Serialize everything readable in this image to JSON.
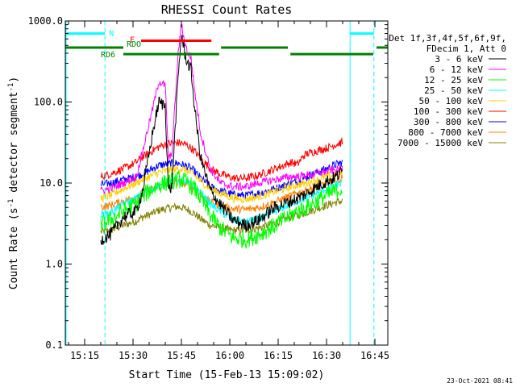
{
  "chart_data": {
    "type": "line",
    "title": "RHESSI Count Rates",
    "xlabel": "Start Time (15-Feb-13 15:09:02)",
    "ylabel_parts": [
      "Count Rate (s",
      "-1",
      " detector segment",
      "-1",
      ")"
    ],
    "xlim_minutes": [
      0,
      100
    ],
    "ylim": [
      0.1,
      1000
    ],
    "yscale": "log",
    "x_ticks": [
      {
        "label": "15:15",
        "minute": 6
      },
      {
        "label": "15:30",
        "minute": 21
      },
      {
        "label": "15:45",
        "minute": 36
      },
      {
        "label": "16:00",
        "minute": 51
      },
      {
        "label": "16:15",
        "minute": 66
      },
      {
        "label": "16:30",
        "minute": 81
      },
      {
        "label": "16:45",
        "minute": 96
      }
    ],
    "y_ticks": [
      {
        "label": "0.1",
        "value": 0.1
      },
      {
        "label": "1.0",
        "value": 1
      },
      {
        "label": "10.0",
        "value": 10
      },
      {
        "label": "100.0",
        "value": 100
      },
      {
        "label": "1000.0",
        "value": 1000
      }
    ],
    "legend": {
      "placement": "right",
      "header": [
        "Det 1f,3f,4f,5f,6f,9f,",
        "FDecim 1, Att 0"
      ]
    },
    "series": [
      {
        "name": "3 - 6 keV",
        "color": "#000000",
        "points": [
          [
            11,
            2.0
          ],
          [
            14,
            2.3
          ],
          [
            18,
            3.8
          ],
          [
            22,
            4.5
          ],
          [
            24,
            8
          ],
          [
            27,
            40
          ],
          [
            29,
            100
          ],
          [
            31,
            90
          ],
          [
            32,
            8
          ],
          [
            33,
            9
          ],
          [
            35,
            200
          ],
          [
            36,
            700
          ],
          [
            37,
            400
          ],
          [
            38,
            300
          ],
          [
            39,
            250
          ],
          [
            40,
            90
          ],
          [
            42,
            20
          ],
          [
            45,
            8
          ],
          [
            48,
            5.5
          ],
          [
            52,
            3.5
          ],
          [
            56,
            3.0
          ],
          [
            60,
            3.5
          ],
          [
            65,
            5.0
          ],
          [
            70,
            6.0
          ],
          [
            72,
            6.5
          ],
          [
            75,
            7.5
          ],
          [
            78,
            9.0
          ],
          [
            81,
            10.5
          ],
          [
            84,
            12.0
          ],
          [
            86,
            14.0
          ]
        ]
      },
      {
        "name": "6 - 12 keV",
        "color": "#ff00ff",
        "points": [
          [
            11,
            8.0
          ],
          [
            14,
            8.5
          ],
          [
            18,
            10
          ],
          [
            22,
            12
          ],
          [
            24,
            25
          ],
          [
            27,
            80
          ],
          [
            29,
            180
          ],
          [
            31,
            160
          ],
          [
            32,
            20
          ],
          [
            33,
            22
          ],
          [
            35,
            400
          ],
          [
            36,
            900
          ],
          [
            37,
            550
          ],
          [
            38,
            400
          ],
          [
            39,
            350
          ],
          [
            40,
            150
          ],
          [
            42,
            40
          ],
          [
            45,
            15
          ],
          [
            48,
            10
          ],
          [
            52,
            9
          ],
          [
            56,
            9
          ],
          [
            60,
            10
          ],
          [
            65,
            11
          ],
          [
            70,
            12
          ],
          [
            72,
            12
          ],
          [
            75,
            12.5
          ],
          [
            78,
            13
          ],
          [
            81,
            14
          ],
          [
            84,
            14.5
          ],
          [
            86,
            15
          ]
        ]
      },
      {
        "name": "12 - 25 keV",
        "color": "#00ff00",
        "points": [
          [
            11,
            3.0
          ],
          [
            14,
            3.5
          ],
          [
            18,
            4.5
          ],
          [
            22,
            5.5
          ],
          [
            24,
            7.0
          ],
          [
            27,
            8.5
          ],
          [
            29,
            9.5
          ],
          [
            31,
            10
          ],
          [
            33,
            10.5
          ],
          [
            35,
            11
          ],
          [
            36,
            11
          ],
          [
            38,
            10
          ],
          [
            40,
            8.5
          ],
          [
            42,
            6.5
          ],
          [
            45,
            4.0
          ],
          [
            48,
            2.8
          ],
          [
            52,
            2.1
          ],
          [
            56,
            2.0
          ],
          [
            60,
            2.3
          ],
          [
            65,
            3.0
          ],
          [
            70,
            4.0
          ],
          [
            72,
            4.5
          ],
          [
            75,
            5.0
          ],
          [
            78,
            6.0
          ],
          [
            81,
            7.0
          ],
          [
            84,
            8.0
          ],
          [
            86,
            8.5
          ]
        ]
      },
      {
        "name": "25 - 50 keV",
        "color": "#00ffff",
        "points": [
          [
            11,
            4.0
          ],
          [
            14,
            4.3
          ],
          [
            18,
            5.5
          ],
          [
            22,
            6.5
          ],
          [
            24,
            7.5
          ],
          [
            27,
            8.5
          ],
          [
            29,
            9.5
          ],
          [
            31,
            10
          ],
          [
            33,
            10.5
          ],
          [
            35,
            11
          ],
          [
            36,
            11
          ],
          [
            38,
            10
          ],
          [
            40,
            9
          ],
          [
            42,
            7.5
          ],
          [
            45,
            5.5
          ],
          [
            48,
            4.5
          ],
          [
            52,
            3.5
          ],
          [
            56,
            3.3
          ],
          [
            60,
            3.6
          ],
          [
            65,
            4.5
          ],
          [
            70,
            5.5
          ],
          [
            72,
            6.0
          ],
          [
            75,
            6.5
          ],
          [
            78,
            7.5
          ],
          [
            81,
            8.5
          ],
          [
            84,
            9.5
          ],
          [
            86,
            10
          ]
        ]
      },
      {
        "name": "50 - 100 keV",
        "color": "#ffd000",
        "points": [
          [
            11,
            6.5
          ],
          [
            14,
            7.0
          ],
          [
            18,
            8.5
          ],
          [
            22,
            10
          ],
          [
            24,
            11
          ],
          [
            27,
            12.5
          ],
          [
            29,
            13.5
          ],
          [
            31,
            14
          ],
          [
            33,
            14.5
          ],
          [
            35,
            15
          ],
          [
            36,
            15
          ],
          [
            38,
            14
          ],
          [
            40,
            12.5
          ],
          [
            42,
            10.5
          ],
          [
            45,
            8.5
          ],
          [
            48,
            7.5
          ],
          [
            52,
            6.5
          ],
          [
            56,
            6.3
          ],
          [
            60,
            6.8
          ],
          [
            65,
            7.8
          ],
          [
            70,
            9.0
          ],
          [
            72,
            9.5
          ],
          [
            75,
            10
          ],
          [
            78,
            11
          ],
          [
            81,
            12
          ],
          [
            84,
            13
          ],
          [
            86,
            13.5
          ]
        ]
      },
      {
        "name": "100 - 300 keV",
        "color": "#ff0000",
        "points": [
          [
            11,
            12
          ],
          [
            14,
            13
          ],
          [
            18,
            15
          ],
          [
            22,
            18
          ],
          [
            24,
            21
          ],
          [
            27,
            25
          ],
          [
            29,
            28
          ],
          [
            31,
            30
          ],
          [
            33,
            31
          ],
          [
            35,
            31.5
          ],
          [
            36,
            31
          ],
          [
            38,
            29
          ],
          [
            40,
            25
          ],
          [
            42,
            20
          ],
          [
            45,
            15
          ],
          [
            48,
            13
          ],
          [
            52,
            11.5
          ],
          [
            56,
            11.5
          ],
          [
            60,
            12.5
          ],
          [
            65,
            15
          ],
          [
            70,
            18
          ],
          [
            72,
            17
          ],
          [
            74,
            22
          ],
          [
            75,
            23
          ],
          [
            78,
            25
          ],
          [
            81,
            27
          ],
          [
            84,
            30
          ],
          [
            86,
            32
          ]
        ]
      },
      {
        "name": "300 - 800 keV",
        "color": "#0000ff",
        "points": [
          [
            11,
            9.5
          ],
          [
            14,
            10
          ],
          [
            18,
            11
          ],
          [
            22,
            12
          ],
          [
            24,
            13
          ],
          [
            27,
            15
          ],
          [
            29,
            16.5
          ],
          [
            31,
            17
          ],
          [
            33,
            17.5
          ],
          [
            35,
            17.5
          ],
          [
            36,
            17
          ],
          [
            38,
            16
          ],
          [
            40,
            14
          ],
          [
            42,
            11.5
          ],
          [
            45,
            9
          ],
          [
            48,
            8
          ],
          [
            52,
            7.2
          ],
          [
            56,
            7
          ],
          [
            60,
            7.5
          ],
          [
            65,
            8.5
          ],
          [
            70,
            10
          ],
          [
            72,
            10.5
          ],
          [
            75,
            12
          ],
          [
            78,
            13.5
          ],
          [
            81,
            15
          ],
          [
            84,
            17
          ],
          [
            86,
            18
          ]
        ]
      },
      {
        "name": "800 - 7000 keV",
        "color": "#ff8000",
        "points": [
          [
            11,
            5.0
          ],
          [
            14,
            5.3
          ],
          [
            18,
            6.0
          ],
          [
            22,
            6.8
          ],
          [
            24,
            7.5
          ],
          [
            27,
            8.5
          ],
          [
            29,
            9.3
          ],
          [
            31,
            9.8
          ],
          [
            33,
            10
          ],
          [
            35,
            10.2
          ],
          [
            36,
            10
          ],
          [
            38,
            9.5
          ],
          [
            40,
            8.5
          ],
          [
            42,
            7.0
          ],
          [
            45,
            5.8
          ],
          [
            48,
            5.2
          ],
          [
            52,
            4.8
          ],
          [
            56,
            4.7
          ],
          [
            60,
            5.0
          ],
          [
            65,
            5.8
          ],
          [
            70,
            7.0
          ],
          [
            72,
            7.5
          ],
          [
            75,
            8.2
          ],
          [
            78,
            9.0
          ],
          [
            81,
            10
          ],
          [
            84,
            11
          ],
          [
            86,
            11.5
          ]
        ]
      },
      {
        "name": "7000 - 15000 keV",
        "color": "#808000",
        "points": [
          [
            11,
            2.5
          ],
          [
            14,
            2.6
          ],
          [
            18,
            3.0
          ],
          [
            22,
            3.4
          ],
          [
            24,
            3.8
          ],
          [
            27,
            4.2
          ],
          [
            29,
            4.6
          ],
          [
            31,
            4.8
          ],
          [
            33,
            5.0
          ],
          [
            35,
            5.1
          ],
          [
            36,
            5.0
          ],
          [
            38,
            4.7
          ],
          [
            40,
            4.2
          ],
          [
            42,
            3.6
          ],
          [
            45,
            3.0
          ],
          [
            48,
            2.8
          ],
          [
            52,
            2.6
          ],
          [
            56,
            2.6
          ],
          [
            60,
            2.8
          ],
          [
            65,
            3.2
          ],
          [
            70,
            3.8
          ],
          [
            72,
            4.0
          ],
          [
            75,
            4.4
          ],
          [
            78,
            4.8
          ],
          [
            81,
            5.3
          ],
          [
            84,
            5.8
          ],
          [
            86,
            6.0
          ]
        ]
      }
    ],
    "vertical_lines": [
      {
        "minute": 12.3,
        "style": "dashed",
        "color": "#00ffff"
      },
      {
        "minute": 88.3,
        "style": "solid",
        "color": "#00ffff"
      },
      {
        "minute": 95.7,
        "style": "dashed",
        "color": "#00ffff"
      }
    ],
    "flag_bars": [
      {
        "label": "N",
        "color": "#00ffff",
        "y_value": 700,
        "segments": [
          [
            0,
            12.3
          ],
          [
            88.3,
            95.7
          ]
        ]
      },
      {
        "label": "F",
        "color": "#ff0000",
        "y_value": 570,
        "segments": [
          [
            23.5,
            45.3
          ]
        ]
      },
      {
        "label": "RDO",
        "color": "#008000",
        "y_value": 470,
        "segments": [
          [
            0,
            18
          ],
          [
            48.3,
            69
          ],
          [
            96.5,
            100
          ]
        ]
      },
      {
        "label": "RD6",
        "color": "#008000",
        "y_value": 390,
        "segments": [
          [
            18,
            47.7
          ],
          [
            69.8,
            95.5
          ]
        ]
      }
    ]
  },
  "footer": {
    "timestamp": "23-Oct-2021 08:41"
  }
}
